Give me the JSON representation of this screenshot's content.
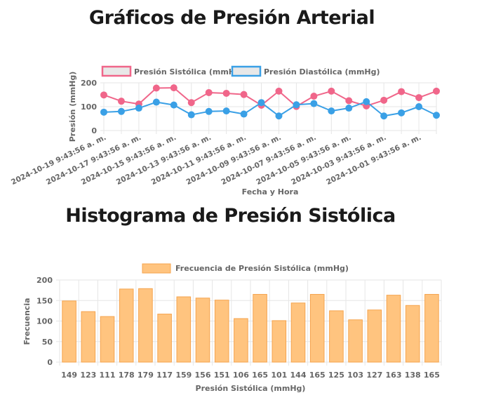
{
  "page": {
    "title1": "Gráficos de Presión Arterial",
    "title2": "Histograma de Presión Sistólica"
  },
  "colors": {
    "systolic": "#f0668a",
    "diastolic": "#3aa0e6",
    "histogram_fill": "#ffc47f",
    "histogram_border": "#f5a44e",
    "grid": "#e6e6e6"
  },
  "chart_data": [
    {
      "type": "line",
      "xlabel": "Fecha y Hora",
      "ylabel": "Presión (mmHg)",
      "ylim": [
        0,
        200
      ],
      "yticks": [
        0,
        100,
        200
      ],
      "legend_position": "top",
      "grid": true,
      "x_tick_labels": [
        "2024-10-19 9:43:56 a. m.",
        "2024-10-17 9:43:56 a. m.",
        "2024-10-15 9:43:56 a. m.",
        "2024-10-13 9:43:56 a. m.",
        "2024-10-11 9:43:56 a. m.",
        "2024-10-09 9:43:56 a. m.",
        "2024-10-07 9:43:56 a. m.",
        "2024-10-05 9:43:56 a. m.",
        "2024-10-03 9:43:56 a. m.",
        "2024-10-01 9:43:56 a. m."
      ],
      "series": [
        {
          "name": "Presión Sistólica (mmHg)",
          "values": [
            149,
            123,
            111,
            178,
            179,
            117,
            159,
            156,
            151,
            106,
            165,
            101,
            144,
            165,
            125,
            103,
            127,
            163,
            138,
            165
          ]
        },
        {
          "name": "Presión Diastólica (mmHg)",
          "values": [
            77,
            80,
            94,
            119,
            107,
            66,
            80,
            82,
            69,
            117,
            61,
            108,
            113,
            82,
            94,
            121,
            61,
            74,
            100,
            64
          ]
        }
      ]
    },
    {
      "type": "bar",
      "xlabel": "Presión Sistólica (mmHg)",
      "ylabel": "Frecuencia",
      "ylim": [
        0,
        200
      ],
      "yticks": [
        0,
        50,
        100,
        150,
        200
      ],
      "legend_position": "top",
      "grid": true,
      "categories": [
        "149",
        "123",
        "111",
        "178",
        "179",
        "117",
        "159",
        "156",
        "151",
        "106",
        "165",
        "101",
        "144",
        "165",
        "125",
        "103",
        "127",
        "163",
        "138",
        "165"
      ],
      "series": [
        {
          "name": "Frecuencia de Presión Sistólica (mmHg)",
          "values": [
            149,
            123,
            111,
            178,
            179,
            117,
            159,
            156,
            151,
            106,
            165,
            101,
            144,
            165,
            125,
            103,
            127,
            163,
            138,
            165
          ]
        }
      ]
    }
  ]
}
